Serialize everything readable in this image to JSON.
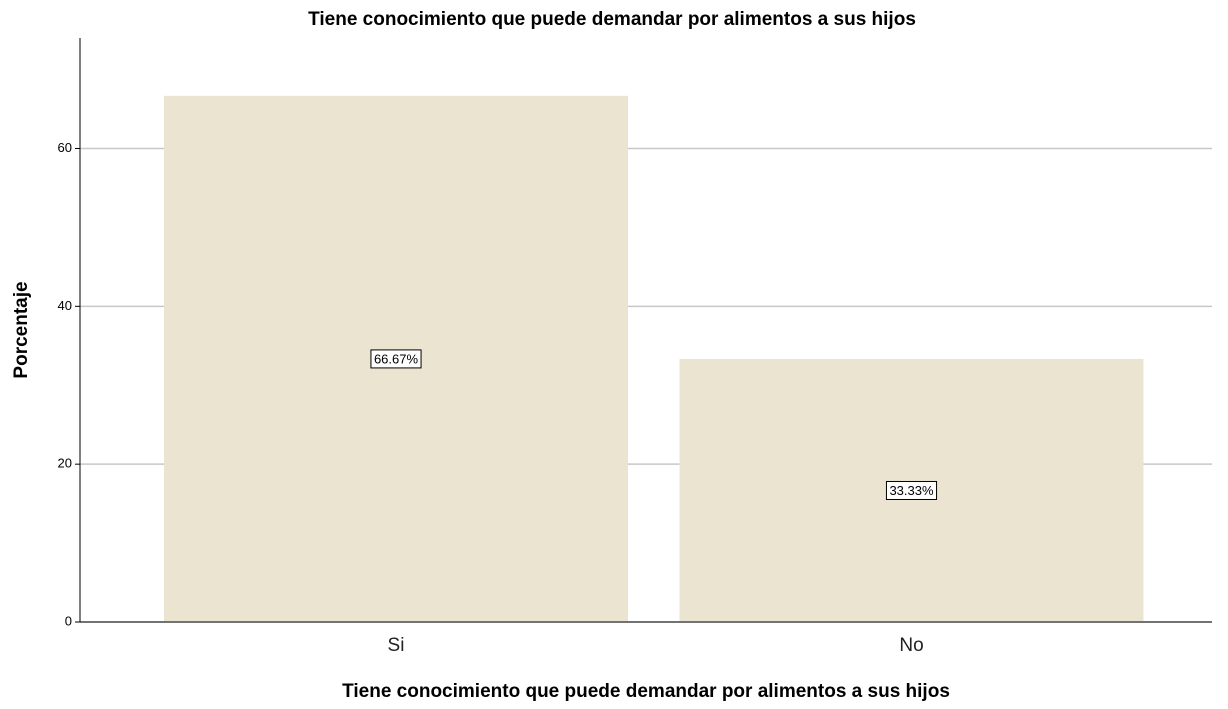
{
  "chart_data": {
    "type": "bar",
    "title": "Tiene conocimiento que puede demandar por alimentos a sus hijos",
    "x_label": "Tiene conocimiento que puede demandar por alimentos a sus hijos",
    "y_label": "Porcentaje",
    "categories": [
      "Si",
      "No"
    ],
    "values": [
      66.67,
      33.33
    ],
    "value_labels": [
      "66.67%",
      "33.33%"
    ],
    "color": "#ebe4d0",
    "ylim": [
      0,
      74
    ],
    "yticks": [
      0,
      20,
      40,
      60
    ],
    "grid": true
  }
}
